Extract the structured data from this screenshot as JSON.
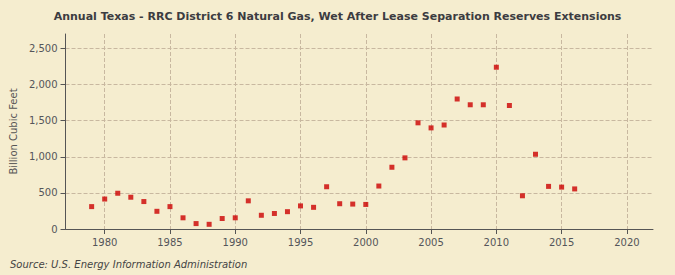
{
  "chart_data": {
    "type": "scatter",
    "title": "Annual Texas - RRC District 6 Natural Gas, Wet After Lease Separation Reserves Extensions",
    "ylabel": "Billion Cubic Feet",
    "source": "Source: U.S. Energy Information Administration",
    "x": [
      1979,
      1980,
      1981,
      1982,
      1983,
      1984,
      1985,
      1986,
      1987,
      1988,
      1989,
      1990,
      1991,
      1992,
      1993,
      1994,
      1995,
      1996,
      1997,
      1998,
      1999,
      2000,
      2001,
      2002,
      2003,
      2004,
      2005,
      2006,
      2007,
      2008,
      2009,
      2010,
      2011,
      2012,
      2013,
      2014,
      2015,
      2016
    ],
    "values": [
      310,
      415,
      495,
      440,
      380,
      245,
      310,
      155,
      75,
      65,
      145,
      155,
      390,
      190,
      215,
      240,
      320,
      300,
      585,
      350,
      345,
      340,
      595,
      855,
      985,
      1470,
      1400,
      1440,
      1800,
      1720,
      1720,
      2240,
      1710,
      460,
      1035,
      590,
      580,
      555
    ],
    "color": "#cc0000",
    "marker": "square",
    "xlim": [
      1977,
      2022
    ],
    "ylim": [
      0,
      2700
    ],
    "xticks": [
      1980,
      1985,
      1990,
      1995,
      2000,
      2005,
      2010,
      2015,
      2020
    ],
    "yticks": [
      0,
      500,
      {
        "value": 1000,
        "label": "1,000"
      },
      {
        "value": 1500,
        "label": "1,500"
      },
      {
        "value": 2000,
        "label": "2,000"
      },
      {
        "value": 2500,
        "label": "2,500"
      }
    ],
    "grid": true
  }
}
